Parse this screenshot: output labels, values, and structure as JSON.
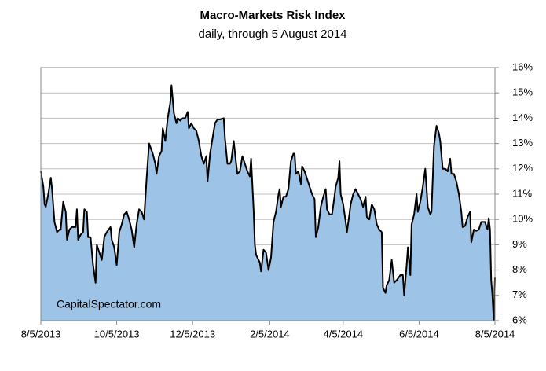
{
  "chart_data": {
    "type": "area",
    "title": "Macro-Markets Risk Index",
    "subtitle": "daily, through 5 August 2014",
    "annotation": "CapitalSpectator.com",
    "color": "#9dc3e6",
    "line_color": "#000000",
    "x": [
      "2013-08-05",
      "2013-08-07",
      "2013-08-08",
      "2013-08-09",
      "2013-08-11",
      "2013-08-13",
      "2013-08-14",
      "2013-08-16",
      "2013-08-18",
      "2013-08-20",
      "2013-08-21",
      "2013-08-23",
      "2013-08-25",
      "2013-08-26",
      "2013-08-28",
      "2013-08-30",
      "2013-09-02",
      "2013-09-03",
      "2013-09-04",
      "2013-09-06",
      "2013-09-08",
      "2013-09-09",
      "2013-09-11",
      "2013-09-12",
      "2013-09-14",
      "2013-09-16",
      "2013-09-18",
      "2013-09-19",
      "2013-09-21",
      "2013-09-23",
      "2013-09-25",
      "2013-09-27",
      "2013-09-30",
      "2013-10-01",
      "2013-10-03",
      "2013-10-05",
      "2013-10-07",
      "2013-10-09",
      "2013-10-11",
      "2013-10-13",
      "2013-10-15",
      "2013-10-17",
      "2013-10-19",
      "2013-10-21",
      "2013-10-23",
      "2013-10-25",
      "2013-10-27",
      "2013-10-29",
      "2013-10-31",
      "2013-11-03",
      "2013-11-05",
      "2013-11-06",
      "2013-11-08",
      "2013-11-10",
      "2013-11-11",
      "2013-11-13",
      "2013-11-15",
      "2013-11-17",
      "2013-11-18",
      "2013-11-20",
      "2013-11-22",
      "2013-11-23",
      "2013-11-25",
      "2013-11-27",
      "2013-11-29",
      "2013-12-01",
      "2013-12-02",
      "2013-12-04",
      "2013-12-06",
      "2013-12-08",
      "2013-12-10",
      "2013-12-12",
      "2013-12-14",
      "2013-12-16",
      "2013-12-17",
      "2013-12-19",
      "2013-12-21",
      "2013-12-23",
      "2013-12-25",
      "2013-12-27",
      "2013-12-30",
      "2013-12-31",
      "2014-01-02",
      "2014-01-04",
      "2014-01-05",
      "2014-01-07",
      "2014-01-09",
      "2014-01-10",
      "2014-01-12",
      "2014-01-14",
      "2014-01-16",
      "2014-01-18",
      "2014-01-20",
      "2014-01-21",
      "2014-01-23",
      "2014-01-24",
      "2014-01-25",
      "2014-01-28",
      "2014-01-29",
      "2014-01-31",
      "2014-02-02",
      "2014-02-04",
      "2014-02-06",
      "2014-02-08",
      "2014-02-10",
      "2014-02-12",
      "2014-02-13",
      "2014-02-14",
      "2014-02-16",
      "2014-02-18",
      "2014-02-20",
      "2014-02-22",
      "2014-02-24",
      "2014-02-25",
      "2014-02-26",
      "2014-02-28",
      "2014-03-02",
      "2014-03-03",
      "2014-03-05",
      "2014-03-07",
      "2014-03-09",
      "2014-03-11",
      "2014-03-13",
      "2014-03-14",
      "2014-03-16",
      "2014-03-18",
      "2014-03-20",
      "2014-03-22",
      "2014-03-23",
      "2014-03-25",
      "2014-03-27",
      "2014-03-29",
      "2014-03-30",
      "2014-04-01",
      "2014-04-02",
      "2014-04-03",
      "2014-04-05",
      "2014-04-07",
      "2014-04-08",
      "2014-04-10",
      "2014-04-11",
      "2014-04-13",
      "2014-04-15",
      "2014-04-17",
      "2014-04-19",
      "2014-04-21",
      "2014-04-23",
      "2014-04-24",
      "2014-04-26",
      "2014-04-28",
      "2014-04-30",
      "2014-05-02",
      "2014-05-04",
      "2014-05-06",
      "2014-05-07",
      "2014-05-09",
      "2014-05-10",
      "2014-05-12",
      "2014-05-14",
      "2014-05-16",
      "2014-05-18",
      "2014-05-21",
      "2014-05-23",
      "2014-05-24",
      "2014-05-26",
      "2014-05-27",
      "2014-05-29",
      "2014-05-30",
      "2014-06-01",
      "2014-06-03",
      "2014-06-04",
      "2014-06-06",
      "2014-06-08",
      "2014-06-10",
      "2014-06-12",
      "2014-06-14",
      "2014-06-15",
      "2014-06-17",
      "2014-06-19",
      "2014-06-21",
      "2014-06-22",
      "2014-06-24",
      "2014-06-26",
      "2014-06-28",
      "2014-06-30",
      "2014-07-01",
      "2014-07-03",
      "2014-07-05",
      "2014-07-07",
      "2014-07-09",
      "2014-07-10",
      "2014-07-12",
      "2014-07-14",
      "2014-07-16",
      "2014-07-17",
      "2014-07-19",
      "2014-07-21",
      "2014-07-23",
      "2014-07-25",
      "2014-07-27",
      "2014-07-28",
      "2014-07-30",
      "2014-07-31",
      "2014-08-01",
      "2014-08-02",
      "2014-08-03",
      "2014-08-04",
      "2014-08-05"
    ],
    "values": [
      11.9,
      11.3,
      10.6,
      10.5,
      11.0,
      11.65,
      11.2,
      9.9,
      9.5,
      9.6,
      9.6,
      10.7,
      10.3,
      9.2,
      9.6,
      9.7,
      9.7,
      10.4,
      9.2,
      9.4,
      9.5,
      10.4,
      10.3,
      9.3,
      9.3,
      8.2,
      7.5,
      9.0,
      8.7,
      8.4,
      9.3,
      9.5,
      9.7,
      9.2,
      8.9,
      8.2,
      9.5,
      9.8,
      10.2,
      10.3,
      10.0,
      9.6,
      8.9,
      9.8,
      10.4,
      10.3,
      10.0,
      11.6,
      13.0,
      12.6,
      12.2,
      11.8,
      12.5,
      12.7,
      13.6,
      13.1,
      14.0,
      14.6,
      15.3,
      14.2,
      13.8,
      14.0,
      13.9,
      14.0,
      14.0,
      14.25,
      13.6,
      13.8,
      13.6,
      13.5,
      13.1,
      12.5,
      12.2,
      12.5,
      11.5,
      12.6,
      13.2,
      13.8,
      13.95,
      13.95,
      14.0,
      13.2,
      12.2,
      12.2,
      12.3,
      13.1,
      12.2,
      11.8,
      11.9,
      12.5,
      12.2,
      11.9,
      11.7,
      12.4,
      10.4,
      9.0,
      8.6,
      8.3,
      7.95,
      8.8,
      8.7,
      8.0,
      8.5,
      9.9,
      10.3,
      11.0,
      11.2,
      10.5,
      10.9,
      10.9,
      11.2,
      12.3,
      12.6,
      12.6,
      11.8,
      11.9,
      11.4,
      12.1,
      11.9,
      11.6,
      11.3,
      11.0,
      10.8,
      9.3,
      9.7,
      10.5,
      10.9,
      11.2,
      10.4,
      10.2,
      10.2,
      10.9,
      11.3,
      11.65,
      12.3,
      11.0,
      10.6,
      9.9,
      9.5,
      10.2,
      10.6,
      11.0,
      11.2,
      11.0,
      10.8,
      10.5,
      10.9,
      10.1,
      10.0,
      10.6,
      10.4,
      9.8,
      9.6,
      9.5,
      7.3,
      7.1,
      7.4,
      7.6,
      8.4,
      7.5,
      7.6,
      7.8,
      7.8,
      7.0,
      8.2,
      8.9,
      7.8,
      9.8,
      10.2,
      11.0,
      10.3,
      10.7,
      11.3,
      12.0,
      10.5,
      10.2,
      10.3,
      12.9,
      13.7,
      13.4,
      13.1,
      12.0,
      12.0,
      11.9,
      12.4,
      11.8,
      11.8,
      11.5,
      11.0,
      10.3,
      9.7,
      9.75,
      10.1,
      10.3,
      9.1,
      9.6,
      9.55,
      9.6,
      9.9,
      9.9,
      9.9,
      9.6,
      10.05,
      9.6,
      7.6,
      7.0,
      6.0,
      7.7
    ],
    "xlim": [
      "2013-08-05",
      "2014-08-05"
    ],
    "xticks": [
      {
        "value": "2013-08-05",
        "label": "8/5/2013"
      },
      {
        "value": "2013-10-05",
        "label": "10/5/2013"
      },
      {
        "value": "2013-12-05",
        "label": "12/5/2013"
      },
      {
        "value": "2014-02-05",
        "label": "2/5/2014"
      },
      {
        "value": "2014-04-05",
        "label": "4/5/2014"
      },
      {
        "value": "2014-06-05",
        "label": "6/5/2014"
      },
      {
        "value": "2014-08-05",
        "label": "8/5/2014"
      }
    ],
    "ylim": [
      6,
      16
    ],
    "yticks": [
      {
        "value": 6,
        "label": "6%"
      },
      {
        "value": 7,
        "label": "7%"
      },
      {
        "value": 8,
        "label": "8%"
      },
      {
        "value": 9,
        "label": "9%"
      },
      {
        "value": 10,
        "label": "10%"
      },
      {
        "value": 11,
        "label": "11%"
      },
      {
        "value": 12,
        "label": "12%"
      },
      {
        "value": 13,
        "label": "13%"
      },
      {
        "value": 14,
        "label": "14%"
      },
      {
        "value": 15,
        "label": "15%"
      },
      {
        "value": 16,
        "label": "16%"
      }
    ],
    "grid": true
  }
}
